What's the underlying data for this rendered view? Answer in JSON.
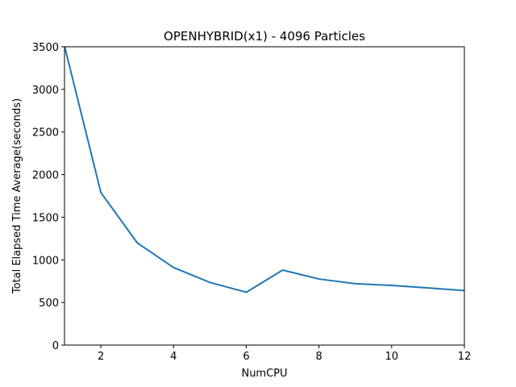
{
  "chart_data": {
    "type": "line",
    "title": "OPENHYBRID(x1) - 4096 Particles",
    "xlabel": "NumCPU",
    "ylabel": "Total Elapsed Time Average(seconds)",
    "xlim": [
      1,
      12
    ],
    "ylim": [
      0,
      3500
    ],
    "xticks": [
      2,
      4,
      6,
      8,
      10,
      12
    ],
    "yticks": [
      0,
      500,
      1000,
      1500,
      2000,
      2500,
      3000,
      3500
    ],
    "grid": false,
    "series": [
      {
        "color": "#1f77b4",
        "x": [
          1,
          2,
          3,
          4,
          5,
          6,
          7,
          8,
          9,
          10,
          11,
          12
        ],
        "y": [
          3510,
          1790,
          1200,
          910,
          735,
          620,
          880,
          775,
          720,
          700,
          670,
          640
        ]
      }
    ]
  }
}
